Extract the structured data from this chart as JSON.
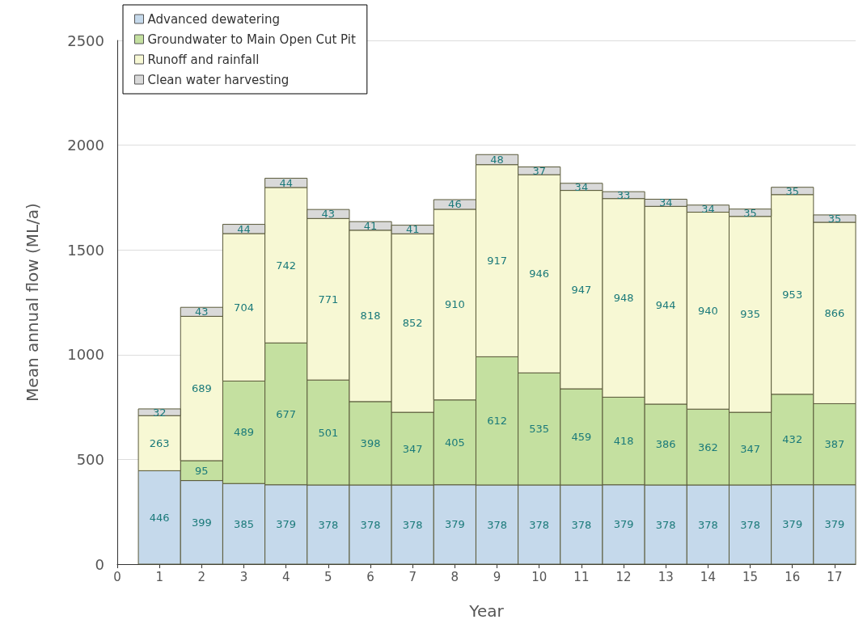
{
  "chart_data": {
    "type": "bar",
    "stacked": true,
    "xlabel": "Year",
    "ylabel": "Mean annual flow (ML/a)",
    "x": [
      1,
      2,
      3,
      4,
      5,
      6,
      7,
      8,
      9,
      10,
      11,
      12,
      13,
      14,
      15,
      16,
      17
    ],
    "xlim": [
      0,
      17.5
    ],
    "xticks": [
      0,
      1,
      2,
      3,
      4,
      5,
      6,
      7,
      8,
      9,
      10,
      11,
      12,
      13,
      14,
      15,
      16,
      17
    ],
    "ylim": [
      0,
      2500
    ],
    "yticks": [
      0,
      500,
      1000,
      1500,
      2000,
      2500
    ],
    "grid": "y",
    "legend": "top left",
    "data_labels": true,
    "series": [
      {
        "name": "Advanced dewatering",
        "color": "#c5d9eb",
        "values": [
          446,
          399,
          385,
          379,
          378,
          378,
          378,
          379,
          378,
          378,
          378,
          379,
          378,
          378,
          378,
          379,
          379
        ]
      },
      {
        "name": "Groundwater to Main Open Cut Pit",
        "color": "#c4e0a0",
        "values": [
          null,
          95,
          489,
          677,
          501,
          398,
          347,
          405,
          612,
          535,
          459,
          418,
          386,
          362,
          347,
          432,
          387
        ]
      },
      {
        "name": "Runoff and rainfall",
        "color": "#f7f8d4",
        "values": [
          263,
          689,
          704,
          742,
          771,
          818,
          852,
          910,
          917,
          946,
          947,
          948,
          944,
          940,
          935,
          953,
          866
        ]
      },
      {
        "name": "Clean water harvesting",
        "color": "#d9d9d9",
        "values": [
          32,
          43,
          44,
          44,
          43,
          41,
          41,
          46,
          48,
          37,
          34,
          33,
          34,
          34,
          35,
          35,
          35
        ]
      }
    ]
  }
}
